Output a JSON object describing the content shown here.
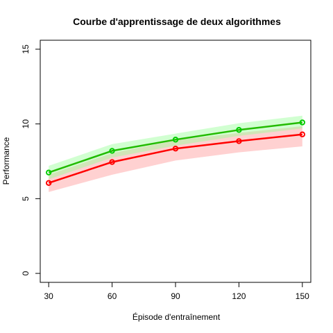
{
  "chart_data": {
    "type": "line",
    "title": "Courbe d'apprentissage de deux algorithmes",
    "xlabel": "Épisode d'entraînement",
    "ylabel": "Performance",
    "x": [
      30,
      60,
      90,
      120,
      150
    ],
    "xticks": [
      "30",
      "60",
      "90",
      "120",
      "150"
    ],
    "yticks": [
      "0",
      "5",
      "10",
      "15"
    ],
    "xlim": [
      26,
      154
    ],
    "ylim": [
      -0.6,
      15.6
    ],
    "grid": false,
    "legend": "none",
    "series": [
      {
        "color": "#ff0000",
        "band_color": "#ff9999",
        "values": [
          6.05,
          7.45,
          8.35,
          8.85,
          9.3
        ],
        "lower": [
          5.45,
          6.6,
          7.55,
          8.1,
          8.5
        ],
        "upper": [
          6.6,
          8.05,
          8.9,
          9.4,
          9.85
        ]
      },
      {
        "color": "#00cc00",
        "line_color": "#22bb00",
        "band_color": "#99ff99",
        "values": [
          6.75,
          8.2,
          8.95,
          9.6,
          10.1
        ],
        "lower": [
          6.3,
          7.75,
          8.55,
          9.2,
          9.7
        ],
        "upper": [
          7.2,
          8.65,
          9.35,
          10.05,
          10.55
        ]
      }
    ]
  }
}
